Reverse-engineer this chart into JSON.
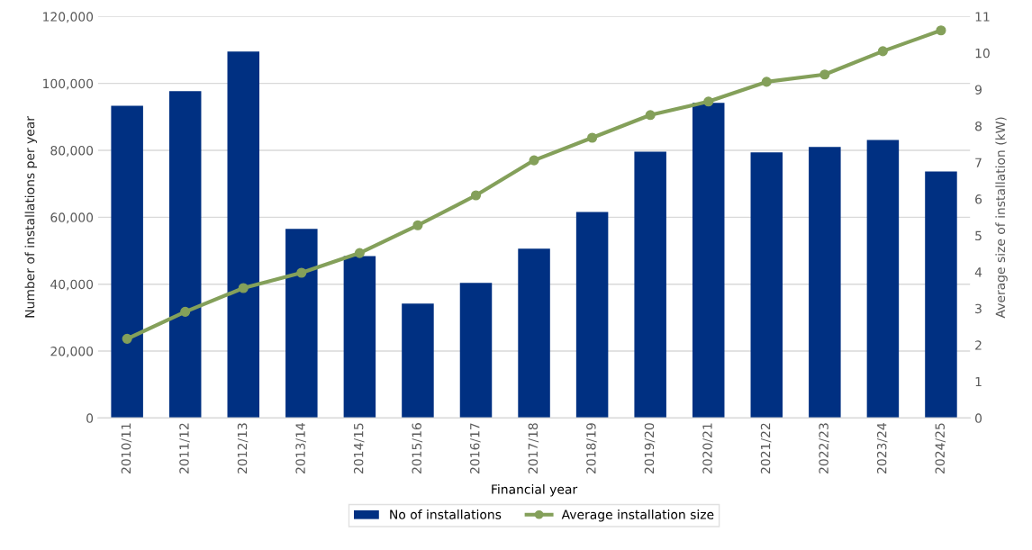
{
  "chart_data": {
    "type": "bar",
    "xlabel": "Financial year",
    "ylabel": "Number of installations per year",
    "y2label": "Average size of installation (kW)",
    "categories": [
      "2010/11",
      "2011/12",
      "2012/13",
      "2013/14",
      "2014/15",
      "2015/16",
      "2016/17",
      "2017/18",
      "2018/19",
      "2019/20",
      "2020/21",
      "2021/22",
      "2022/23",
      "2023/24",
      "2024/25"
    ],
    "series": [
      {
        "name": "No of installations",
        "color": "#003082",
        "values": [
          93300,
          97700,
          109500,
          56500,
          48400,
          34200,
          40400,
          50600,
          61600,
          79600,
          94200,
          79400,
          81000,
          83100,
          73700
        ]
      },
      {
        "name": "Average installation size",
        "type": "line",
        "axis": "y2",
        "color": "#84a05a",
        "marker": "circle",
        "values": [
          2.17,
          2.91,
          3.56,
          3.98,
          4.52,
          5.28,
          6.1,
          7.06,
          7.68,
          8.3,
          8.67,
          9.21,
          9.41,
          10.05,
          10.62
        ]
      }
    ],
    "ylim": [
      0,
      120000
    ],
    "yticks": [
      {
        "value": 0,
        "label": "0"
      },
      {
        "value": 20000,
        "label": "20,000"
      },
      {
        "value": 40000,
        "label": "40,000"
      },
      {
        "value": 60000,
        "label": "60,000"
      },
      {
        "value": 80000,
        "label": "80,000"
      },
      {
        "value": 100000,
        "label": "100,000"
      },
      {
        "value": 120000,
        "label": "120,000"
      }
    ],
    "y2lim": [
      0,
      11
    ],
    "y2ticks": [
      0,
      1,
      2,
      3,
      4,
      5,
      6,
      7,
      8,
      9,
      10,
      11
    ],
    "grid": "y",
    "legend": "bottom"
  }
}
